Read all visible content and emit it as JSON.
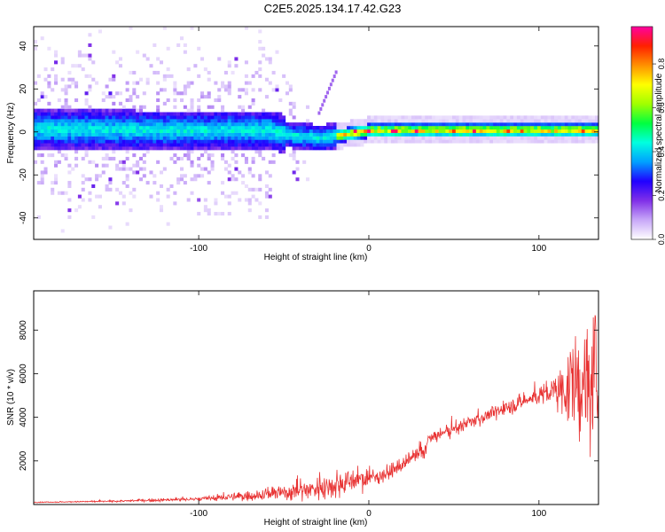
{
  "title": "C2E5.2025.134.17.42.G23",
  "chart_data": [
    {
      "type": "heatmap",
      "xlabel": "Height of straight line (km)",
      "ylabel": "Frequency (Hz)",
      "xlim": [
        -197,
        135
      ],
      "ylim": [
        -50,
        49
      ],
      "x_ticks": [
        -100,
        0,
        100
      ],
      "y_ticks": [
        -40,
        -20,
        0,
        20,
        40
      ],
      "x_tick_labels": [
        "-100",
        "0",
        "100"
      ],
      "y_tick_labels": [
        "-40",
        "-20",
        "0",
        "20",
        "40"
      ],
      "colorbar": {
        "label": "Normalized spectral amplitude",
        "range": [
          0,
          0.97
        ],
        "ticks": [
          0.0,
          0.2,
          0.4,
          0.6,
          0.8
        ],
        "tick_labels": [
          "0.0",
          "0.2",
          "0.4",
          "0.6",
          "0.8"
        ],
        "colors": [
          "#ffffff",
          "#c8a8f8",
          "#8030e8",
          "#2000ff",
          "#00a0ff",
          "#00ffe0",
          "#00ff40",
          "#a0ff00",
          "#ffff00",
          "#ff9000",
          "#ff2000",
          "#ff00a0"
        ]
      },
      "ridge": [
        {
          "x": -197,
          "f": 0.5
        },
        {
          "x": -100,
          "f": 0.0
        },
        {
          "x": -60,
          "f": 0.0
        },
        {
          "x": -45,
          "f": -2.5
        },
        {
          "x": -30,
          "f": -3.5
        },
        {
          "x": -10,
          "f": -1.5
        },
        {
          "x": 0,
          "f": 0.0
        },
        {
          "x": 50,
          "f": 0.0
        },
        {
          "x": 135,
          "f": 0.0
        }
      ],
      "side_branch": {
        "x": [
          -30,
          -20
        ],
        "f": [
          8,
          27
        ]
      },
      "grid": false
    },
    {
      "type": "line",
      "xlabel": "Height of straight line (km)",
      "ylabel": "SNR (10 * v/v)",
      "xlim": [
        -197,
        135
      ],
      "ylim": [
        0,
        9800
      ],
      "x_ticks": [
        -100,
        0,
        100
      ],
      "y_ticks": [
        2000,
        4000,
        6000,
        8000
      ],
      "x_tick_labels": [
        "-100",
        "0",
        "100"
      ],
      "y_tick_labels": [
        "2000",
        "4000",
        "6000",
        "8000"
      ],
      "series": [
        {
          "color": "#e83232",
          "x": [
            -197,
            -150,
            -100,
            -70,
            -50,
            -30,
            -20,
            -10,
            0,
            10,
            20,
            25,
            30,
            33,
            35,
            45,
            55,
            60,
            70,
            80,
            90,
            100,
            110,
            115,
            120,
            125,
            130,
            135
          ],
          "y": [
            100,
            150,
            250,
            400,
            550,
            750,
            900,
            1100,
            1200,
            1400,
            1800,
            2100,
            2300,
            2500,
            3000,
            3300,
            3600,
            3800,
            4100,
            4400,
            4700,
            5000,
            5200,
            5300,
            5400,
            5500,
            5600,
            5700
          ],
          "noise_fraction": [
            0.15,
            0.2,
            0.3,
            0.45,
            0.55,
            0.55,
            0.5,
            0.4,
            0.25,
            0.18,
            0.14,
            0.14,
            0.14,
            0.1,
            0.07,
            0.07,
            0.06,
            0.06,
            0.06,
            0.06,
            0.06,
            0.07,
            0.12,
            0.2,
            0.3,
            0.38,
            0.42,
            0.45
          ]
        }
      ],
      "grid": false
    }
  ]
}
